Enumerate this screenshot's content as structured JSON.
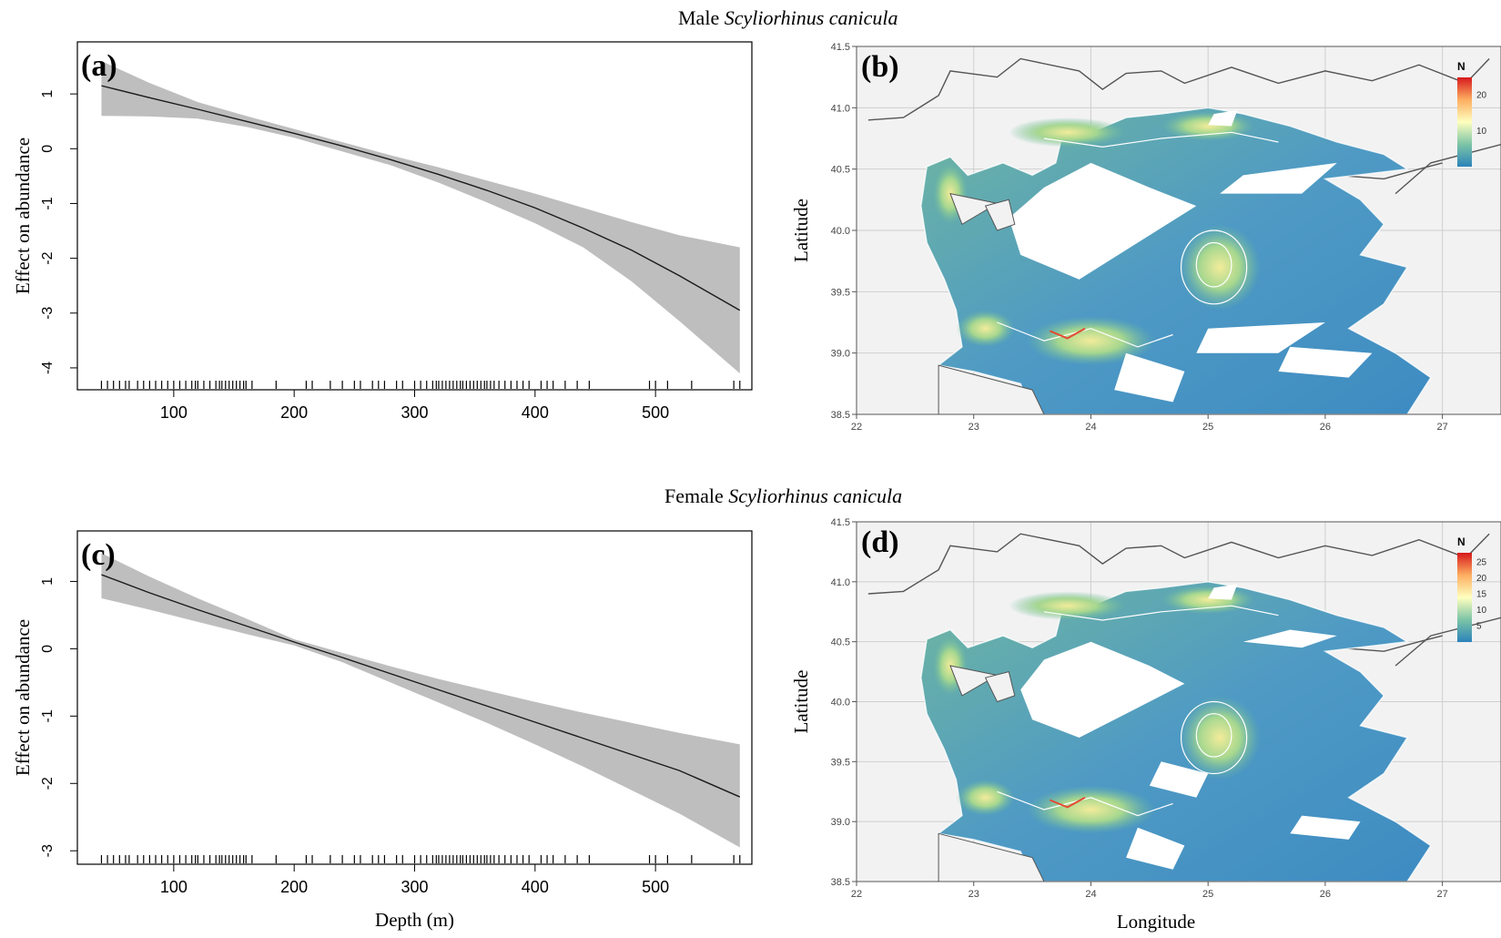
{
  "figure": {
    "rows": [
      {
        "title_prefix": "Male",
        "title_species": "Scyliorhinus canicula"
      },
      {
        "title_prefix": "Female",
        "title_species": "Scyliorhinus canicula"
      }
    ]
  },
  "colors": {
    "band": "#bebebe",
    "line": "#1a1a1a",
    "land": "#f2f2f2",
    "grid": "#cfcfcf",
    "coast": "#555555",
    "scale_low": "#2c7bb6",
    "scale_mid": "#ffffbf",
    "scale_high": "#d7191c"
  },
  "chart_data": [
    {
      "id": "a",
      "type": "line",
      "panel_label": "(a)",
      "xlabel": "",
      "ylabel": "Effect on abundance",
      "xlim": [
        20,
        580
      ],
      "ylim": [
        -4.4,
        1.95
      ],
      "xticks": [
        100,
        200,
        300,
        400,
        500
      ],
      "yticks": [
        1,
        0,
        -1,
        -2,
        -3,
        -4
      ],
      "x": [
        40,
        80,
        120,
        160,
        200,
        240,
        280,
        320,
        360,
        400,
        440,
        480,
        520,
        570
      ],
      "y": [
        1.15,
        0.93,
        0.72,
        0.5,
        0.28,
        0.05,
        -0.2,
        -0.47,
        -0.76,
        -1.08,
        -1.45,
        -1.85,
        -2.32,
        -2.95
      ],
      "lower": [
        0.6,
        0.59,
        0.55,
        0.4,
        0.2,
        -0.05,
        -0.3,
        -0.62,
        -0.98,
        -1.36,
        -1.8,
        -2.42,
        -3.15,
        -4.1
      ],
      "upper": [
        1.6,
        1.2,
        0.85,
        0.6,
        0.36,
        0.12,
        -0.12,
        -0.34,
        -0.58,
        -0.82,
        -1.08,
        -1.34,
        -1.58,
        -1.8
      ],
      "rug": [
        40,
        45,
        50,
        55,
        60,
        63,
        70,
        75,
        80,
        85,
        90,
        95,
        100,
        105,
        110,
        115,
        118,
        120,
        125,
        130,
        135,
        138,
        140,
        143,
        146,
        149,
        152,
        155,
        158,
        160,
        165,
        185,
        210,
        215,
        230,
        240,
        250,
        255,
        265,
        270,
        275,
        285,
        290,
        300,
        305,
        310,
        315,
        318,
        320,
        323,
        326,
        329,
        332,
        335,
        338,
        340,
        343,
        346,
        349,
        352,
        355,
        358,
        360,
        363,
        366,
        370,
        375,
        380,
        385,
        390,
        395,
        405,
        410,
        415,
        425,
        435,
        445,
        495,
        500,
        510,
        530,
        565,
        570
      ]
    },
    {
      "id": "c",
      "type": "line",
      "panel_label": "(c)",
      "xlabel": "Depth (m)",
      "ylabel": "Effect on abundance",
      "xlim": [
        20,
        580
      ],
      "ylim": [
        -3.2,
        1.75
      ],
      "xticks": [
        100,
        200,
        300,
        400,
        500
      ],
      "yticks": [
        1,
        0,
        -1,
        -2,
        -3
      ],
      "x": [
        40,
        80,
        120,
        160,
        200,
        240,
        280,
        320,
        360,
        400,
        440,
        480,
        520,
        570
      ],
      "y": [
        1.1,
        0.83,
        0.58,
        0.34,
        0.1,
        -0.13,
        -0.37,
        -0.61,
        -0.85,
        -1.09,
        -1.33,
        -1.57,
        -1.81,
        -2.2
      ],
      "lower": [
        0.75,
        0.58,
        0.4,
        0.22,
        0.05,
        -0.2,
        -0.5,
        -0.8,
        -1.1,
        -1.42,
        -1.75,
        -2.1,
        -2.45,
        -2.95
      ],
      "upper": [
        1.42,
        1.07,
        0.75,
        0.45,
        0.14,
        -0.06,
        -0.26,
        -0.45,
        -0.62,
        -0.79,
        -0.95,
        -1.1,
        -1.25,
        -1.42
      ],
      "rug": [
        40,
        45,
        50,
        55,
        60,
        63,
        70,
        75,
        80,
        85,
        90,
        95,
        100,
        105,
        110,
        115,
        118,
        120,
        125,
        130,
        135,
        138,
        140,
        143,
        146,
        149,
        152,
        155,
        158,
        160,
        165,
        185,
        210,
        215,
        230,
        240,
        250,
        255,
        265,
        270,
        275,
        285,
        290,
        300,
        305,
        310,
        315,
        318,
        320,
        323,
        326,
        329,
        332,
        335,
        338,
        340,
        343,
        346,
        349,
        352,
        355,
        358,
        360,
        363,
        366,
        370,
        375,
        380,
        385,
        390,
        395,
        405,
        410,
        415,
        425,
        435,
        445,
        495,
        500,
        510,
        530,
        565,
        570
      ]
    },
    {
      "id": "b",
      "type": "heatmap",
      "panel_label": "(b)",
      "xlabel": "",
      "ylabel": "Latitude",
      "xlim": [
        22,
        27.5
      ],
      "ylim": [
        38.5,
        41.5
      ],
      "xticks": [
        "22",
        "23",
        "24",
        "25",
        "26",
        "27"
      ],
      "yticks": [
        "41.5",
        "41.0",
        "40.5",
        "40.0",
        "39.5",
        "39.0",
        "38.5"
      ],
      "legend_title": "N",
      "legend_ticks": [
        "20",
        "10"
      ],
      "legend_range": [
        0,
        25
      ]
    },
    {
      "id": "d",
      "type": "heatmap",
      "panel_label": "(d)",
      "xlabel": "Longitude",
      "ylabel": "Latitude",
      "xlim": [
        22,
        27.5
      ],
      "ylim": [
        38.5,
        41.5
      ],
      "xticks": [
        "22",
        "23",
        "24",
        "25",
        "26",
        "27"
      ],
      "yticks": [
        "41.5",
        "41.0",
        "40.5",
        "40.0",
        "39.5",
        "39.0",
        "38.5"
      ],
      "legend_title": "N",
      "legend_ticks": [
        "25",
        "20",
        "15",
        "10",
        "5"
      ],
      "legend_range": [
        0,
        28
      ]
    }
  ]
}
